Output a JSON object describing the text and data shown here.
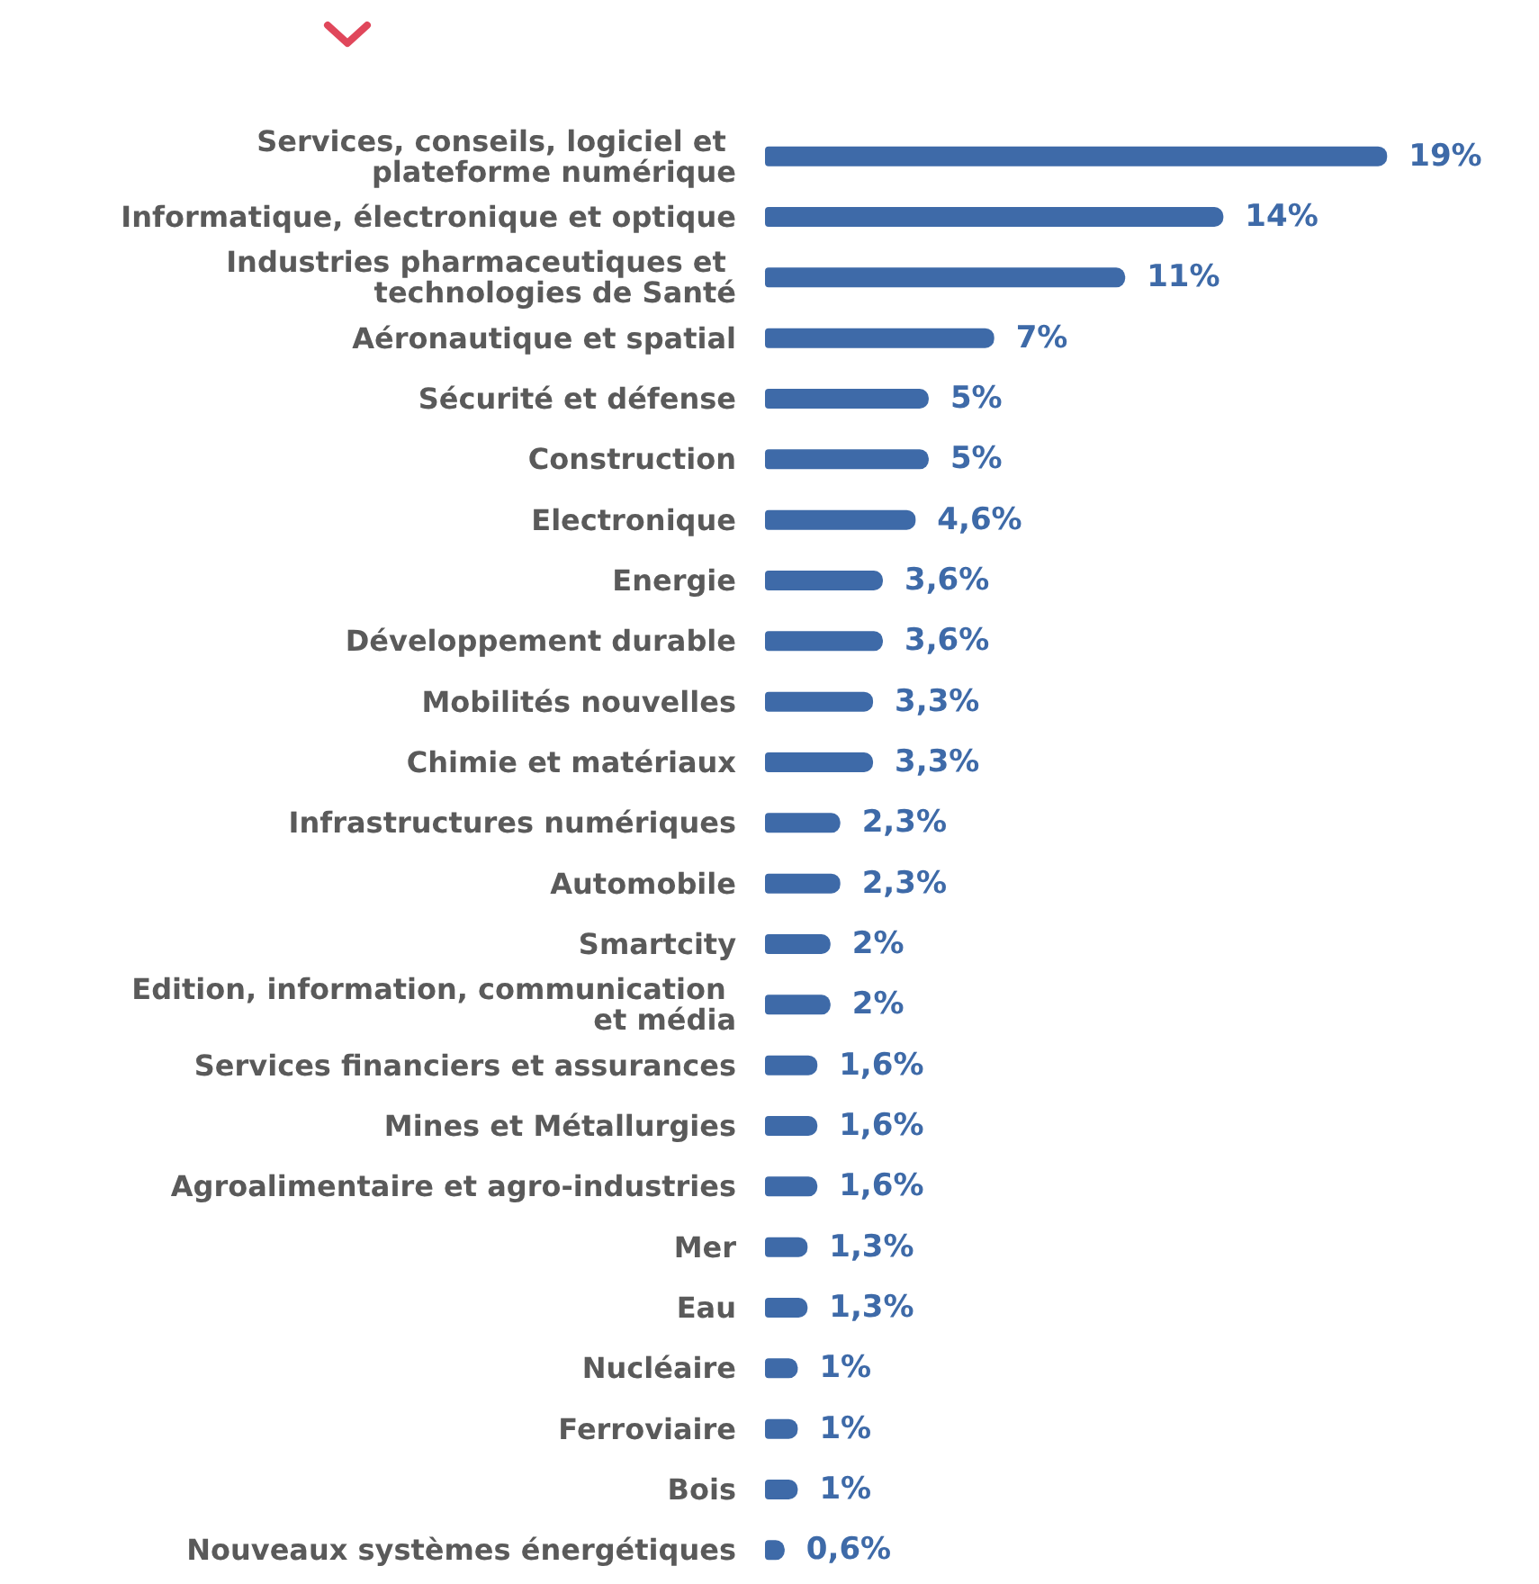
{
  "chart_data": {
    "type": "bar",
    "orientation": "horizontal",
    "color": "#3e6aa8",
    "categories": [
      "Services, conseils, logiciel et plateforme numérique",
      "Informatique, électronique et optique",
      "Industries pharmaceutiques et technologies de Santé",
      "Aéronautique et spatial",
      "Sécurité et défense",
      "Construction",
      "Electronique",
      "Energie",
      "Développement durable",
      "Mobilités nouvelles",
      "Chimie et matériaux",
      "Infrastructures numériques",
      "Automobile",
      "Smartcity",
      "Edition, information, communication et média",
      "Services financiers et assurances",
      "Mines et Métallurgies",
      "Agroalimentaire et agro-industries",
      "Mer",
      "Eau",
      "Nucléaire",
      "Ferroviaire",
      "Bois",
      "Nouveaux systèmes énergétiques"
    ],
    "values": [
      19,
      14,
      11,
      7,
      5,
      5,
      4.6,
      3.6,
      3.6,
      3.3,
      3.3,
      2.3,
      2.3,
      2,
      2,
      1.6,
      1.6,
      1.6,
      1.3,
      1.3,
      1,
      1,
      1,
      0.6
    ],
    "value_labels": [
      "19%",
      "14%",
      "11%",
      "7%",
      "5%",
      "5%",
      "4,6%",
      "3,6%",
      "3,6%",
      "3,3%",
      "3,3%",
      "2,3%",
      "2,3%",
      "2%",
      "2%",
      "1,6%",
      "1,6%",
      "1,6%",
      "1,3%",
      "1,3%",
      "1%",
      "1%",
      "1%",
      "0,6%"
    ]
  }
}
